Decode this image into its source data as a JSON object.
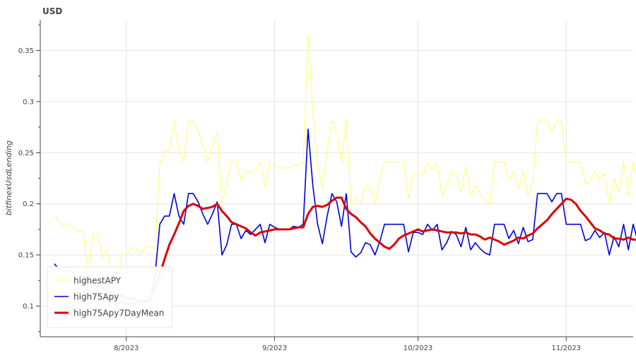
{
  "chart_data": {
    "type": "line",
    "title": "USD",
    "xlabel": "",
    "ylabel": "bitfinexUsdLending",
    "x_start": "2023-07-17",
    "xlim": [
      "2023-07-14",
      "2023-11-15"
    ],
    "ylim": [
      0.07,
      0.38
    ],
    "yticks": [
      0.1,
      0.15,
      0.2,
      0.25,
      0.3,
      0.35
    ],
    "ytick_labels": [
      "0.1",
      "0.15",
      "0.2",
      "0.25",
      "0.3",
      "0.35"
    ],
    "xticks": [
      "2023-08-01",
      "2023-09-01",
      "2023-10-01",
      "2023-11-01"
    ],
    "xtick_labels": [
      "8/2023",
      "9/2023",
      "10/2023",
      "11/2023"
    ],
    "grid": true,
    "legend_position": "bottom-left",
    "series": [
      {
        "name": "highestAPY",
        "color": "#ffff66",
        "line_width": 1,
        "values": [
          0.188,
          0.183,
          0.178,
          0.181,
          0.176,
          0.173,
          0.173,
          0.128,
          0.171,
          0.168,
          0.148,
          0.155,
          0.13,
          0.095,
          0.15,
          0.15,
          0.157,
          0.157,
          0.152,
          0.157,
          0.158,
          0.156,
          0.24,
          0.252,
          0.252,
          0.281,
          0.252,
          0.241,
          0.281,
          0.281,
          0.272,
          0.256,
          0.241,
          0.256,
          0.27,
          0.2,
          0.221,
          0.241,
          0.241,
          0.223,
          0.233,
          0.23,
          0.233,
          0.241,
          0.217,
          0.241,
          0.237,
          0.235,
          0.235,
          0.235,
          0.238,
          0.237,
          0.24,
          0.365,
          0.29,
          0.24,
          0.215,
          0.252,
          0.281,
          0.27,
          0.24,
          0.281,
          0.199,
          0.205,
          0.2,
          0.218,
          0.215,
          0.2,
          0.225,
          0.241,
          0.241,
          0.241,
          0.241,
          0.241,
          0.205,
          0.23,
          0.23,
          0.228,
          0.241,
          0.233,
          0.241,
          0.208,
          0.218,
          0.232,
          0.228,
          0.212,
          0.237,
          0.208,
          0.218,
          0.209,
          0.204,
          0.2,
          0.241,
          0.241,
          0.241,
          0.223,
          0.232,
          0.215,
          0.232,
          0.208,
          0.221,
          0.281,
          0.281,
          0.281,
          0.27,
          0.281,
          0.281,
          0.241,
          0.241,
          0.241,
          0.241,
          0.219,
          0.222,
          0.232,
          0.223,
          0.23,
          0.201,
          0.224,
          0.212,
          0.241,
          0.208,
          0.241,
          0.22
        ]
      },
      {
        "name": "high75Apy",
        "color": "#0000dd",
        "line_width": 1.6,
        "values": [
          0.141,
          0.136,
          0.133,
          0.136,
          0.131,
          0.128,
          0.12,
          0.115,
          0.113,
          0.11,
          0.112,
          0.108,
          0.103,
          0.1,
          0.105,
          0.103,
          0.102,
          0.103,
          0.104,
          0.106,
          0.105,
          0.13,
          0.18,
          0.188,
          0.188,
          0.21,
          0.188,
          0.18,
          0.21,
          0.21,
          0.202,
          0.19,
          0.18,
          0.19,
          0.202,
          0.15,
          0.16,
          0.18,
          0.18,
          0.166,
          0.174,
          0.17,
          0.175,
          0.18,
          0.162,
          0.18,
          0.177,
          0.175,
          0.175,
          0.175,
          0.178,
          0.177,
          0.18,
          0.273,
          0.218,
          0.18,
          0.161,
          0.188,
          0.21,
          0.202,
          0.178,
          0.21,
          0.153,
          0.148,
          0.152,
          0.162,
          0.16,
          0.15,
          0.163,
          0.18,
          0.18,
          0.18,
          0.18,
          0.18,
          0.153,
          0.172,
          0.172,
          0.17,
          0.18,
          0.174,
          0.18,
          0.155,
          0.162,
          0.173,
          0.17,
          0.158,
          0.177,
          0.155,
          0.162,
          0.156,
          0.152,
          0.15,
          0.18,
          0.18,
          0.18,
          0.166,
          0.174,
          0.161,
          0.177,
          0.163,
          0.165,
          0.21,
          0.21,
          0.21,
          0.202,
          0.21,
          0.21,
          0.18,
          0.18,
          0.18,
          0.18,
          0.164,
          0.166,
          0.174,
          0.167,
          0.172,
          0.15,
          0.168,
          0.158,
          0.18,
          0.155,
          0.18,
          0.163
        ]
      },
      {
        "name": "high75Apy7DayMean",
        "color": "#dd0000",
        "line_width": 3,
        "values": [
          null,
          null,
          null,
          null,
          null,
          null,
          0.128,
          0.125,
          0.122,
          0.12,
          0.118,
          0.115,
          0.113,
          0.112,
          0.11,
          0.108,
          0.107,
          0.106,
          0.105,
          0.104,
          0.107,
          0.118,
          0.131,
          0.146,
          0.16,
          0.17,
          0.181,
          0.193,
          0.198,
          0.2,
          0.198,
          0.195,
          0.196,
          0.197,
          0.2,
          0.193,
          0.188,
          0.182,
          0.18,
          0.178,
          0.176,
          0.172,
          0.169,
          0.172,
          0.173,
          0.174,
          0.175,
          0.175,
          0.175,
          0.175,
          0.176,
          0.177,
          0.177,
          0.19,
          0.197,
          0.198,
          0.197,
          0.199,
          0.203,
          0.206,
          0.206,
          0.195,
          0.19,
          0.187,
          0.182,
          0.178,
          0.171,
          0.166,
          0.162,
          0.158,
          0.156,
          0.16,
          0.166,
          0.169,
          0.171,
          0.173,
          0.175,
          0.173,
          0.174,
          0.175,
          0.174,
          0.173,
          0.172,
          0.172,
          0.172,
          0.171,
          0.172,
          0.17,
          0.17,
          0.168,
          0.165,
          0.167,
          0.165,
          0.163,
          0.16,
          0.162,
          0.164,
          0.167,
          0.166,
          0.169,
          0.171,
          0.176,
          0.18,
          0.184,
          0.19,
          0.195,
          0.2,
          0.205,
          0.204,
          0.2,
          0.193,
          0.188,
          0.182,
          0.176,
          0.174,
          0.171,
          0.17,
          0.166,
          0.166,
          0.165,
          0.167,
          0.165,
          0.165
        ]
      }
    ]
  }
}
